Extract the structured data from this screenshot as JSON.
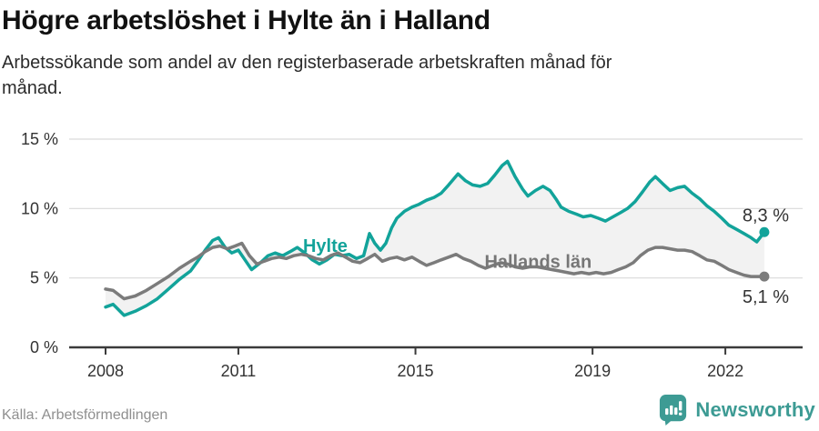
{
  "header": {
    "title": "Högre arbetslöshet i Hylte än i Halland",
    "subtitle": "Arbetssökande som andel av den registerbaserade arbetskraften månad för månad."
  },
  "footer": {
    "source": "Källa: Arbetsförmedlingen",
    "brand": "Newsworthy"
  },
  "colors": {
    "hylte": "#12a39a",
    "halland": "#7b7b7b",
    "halland_label": "#767676",
    "area_fill": "#f2f2f2",
    "grid": "#d9d9d9",
    "axis": "#3b3b3b",
    "tick_text": "#333333",
    "end_label_text": "#333333",
    "brand": "#3d9b94",
    "source_text": "#8f8f8f"
  },
  "chart_data": {
    "type": "line",
    "title": "Högre arbetslöshet i Hylte än i Halland",
    "subtitle": "Arbetssökande som andel av den registerbaserade arbetskraften månad för månad.",
    "unit": "%",
    "xlim": [
      2007.8,
      2023.2
    ],
    "ylim": [
      0,
      15
    ],
    "grid": "horizontal",
    "y_gridlines": [
      5,
      10,
      15
    ],
    "y_ticks": [
      0,
      5,
      10,
      15
    ],
    "y_tick_labels": [
      "0 %",
      "5 %",
      "10 %",
      "15 %"
    ],
    "x_ticks": [
      2008,
      2011,
      2015,
      2019,
      2022
    ],
    "x_tick_labels": [
      "2008",
      "2011",
      "2015",
      "2019",
      "2022"
    ],
    "legend": "inline-labels",
    "area_between_series": true,
    "series": [
      {
        "name": "Hylte",
        "end_label": "8,3 %",
        "end_value": 8.3,
        "end_label_side": "above",
        "label_anchor": {
          "year": 2012.46,
          "pct": 7.35
        },
        "points": [
          [
            2008.0,
            2.9
          ],
          [
            2008.17,
            3.1
          ],
          [
            2008.42,
            2.3
          ],
          [
            2008.67,
            2.6
          ],
          [
            2008.92,
            3.0
          ],
          [
            2009.17,
            3.5
          ],
          [
            2009.42,
            4.2
          ],
          [
            2009.67,
            4.9
          ],
          [
            2009.92,
            5.5
          ],
          [
            2010.08,
            6.2
          ],
          [
            2010.25,
            7.0
          ],
          [
            2010.42,
            7.7
          ],
          [
            2010.55,
            7.9
          ],
          [
            2010.7,
            7.2
          ],
          [
            2010.85,
            6.8
          ],
          [
            2011.0,
            7.0
          ],
          [
            2011.15,
            6.3
          ],
          [
            2011.3,
            5.6
          ],
          [
            2011.5,
            6.1
          ],
          [
            2011.67,
            6.6
          ],
          [
            2011.83,
            6.8
          ],
          [
            2012.0,
            6.6
          ],
          [
            2012.17,
            6.9
          ],
          [
            2012.33,
            7.2
          ],
          [
            2012.5,
            6.8
          ],
          [
            2012.67,
            6.3
          ],
          [
            2012.83,
            6.0
          ],
          [
            2013.0,
            6.3
          ],
          [
            2013.17,
            6.7
          ],
          [
            2013.33,
            6.6
          ],
          [
            2013.5,
            6.7
          ],
          [
            2013.67,
            6.4
          ],
          [
            2013.83,
            6.6
          ],
          [
            2013.96,
            8.2
          ],
          [
            2014.08,
            7.5
          ],
          [
            2014.21,
            7.0
          ],
          [
            2014.33,
            7.5
          ],
          [
            2014.46,
            8.6
          ],
          [
            2014.58,
            9.3
          ],
          [
            2014.75,
            9.8
          ],
          [
            2014.92,
            10.1
          ],
          [
            2015.08,
            10.3
          ],
          [
            2015.25,
            10.6
          ],
          [
            2015.42,
            10.8
          ],
          [
            2015.58,
            11.1
          ],
          [
            2015.75,
            11.7
          ],
          [
            2015.96,
            12.5
          ],
          [
            2016.13,
            12.0
          ],
          [
            2016.29,
            11.7
          ],
          [
            2016.46,
            11.6
          ],
          [
            2016.63,
            11.8
          ],
          [
            2016.79,
            12.4
          ],
          [
            2016.96,
            13.1
          ],
          [
            2017.08,
            13.4
          ],
          [
            2017.25,
            12.3
          ],
          [
            2017.42,
            11.4
          ],
          [
            2017.54,
            10.9
          ],
          [
            2017.71,
            11.3
          ],
          [
            2017.88,
            11.6
          ],
          [
            2018.04,
            11.3
          ],
          [
            2018.17,
            10.7
          ],
          [
            2018.29,
            10.1
          ],
          [
            2018.46,
            9.8
          ],
          [
            2018.63,
            9.6
          ],
          [
            2018.79,
            9.4
          ],
          [
            2018.96,
            9.5
          ],
          [
            2019.13,
            9.3
          ],
          [
            2019.29,
            9.1
          ],
          [
            2019.46,
            9.4
          ],
          [
            2019.63,
            9.7
          ],
          [
            2019.79,
            10.0
          ],
          [
            2019.96,
            10.5
          ],
          [
            2020.13,
            11.2
          ],
          [
            2020.29,
            11.9
          ],
          [
            2020.42,
            12.3
          ],
          [
            2020.58,
            11.8
          ],
          [
            2020.75,
            11.3
          ],
          [
            2020.92,
            11.5
          ],
          [
            2021.08,
            11.6
          ],
          [
            2021.25,
            11.1
          ],
          [
            2021.42,
            10.7
          ],
          [
            2021.58,
            10.2
          ],
          [
            2021.75,
            9.8
          ],
          [
            2021.92,
            9.3
          ],
          [
            2022.08,
            8.8
          ],
          [
            2022.25,
            8.5
          ],
          [
            2022.42,
            8.2
          ],
          [
            2022.58,
            7.9
          ],
          [
            2022.71,
            7.6
          ],
          [
            2022.88,
            8.3
          ]
        ]
      },
      {
        "name": "Hallands län",
        "end_label": "5,1 %",
        "end_value": 5.1,
        "end_label_side": "below",
        "label_anchor": {
          "year": 2016.56,
          "pct": 6.2
        },
        "points": [
          [
            2008.0,
            4.2
          ],
          [
            2008.17,
            4.1
          ],
          [
            2008.42,
            3.5
          ],
          [
            2008.67,
            3.7
          ],
          [
            2008.92,
            4.1
          ],
          [
            2009.17,
            4.6
          ],
          [
            2009.42,
            5.1
          ],
          [
            2009.67,
            5.7
          ],
          [
            2009.92,
            6.2
          ],
          [
            2010.08,
            6.5
          ],
          [
            2010.25,
            6.9
          ],
          [
            2010.42,
            7.2
          ],
          [
            2010.58,
            7.3
          ],
          [
            2010.75,
            7.1
          ],
          [
            2010.92,
            7.3
          ],
          [
            2011.08,
            7.5
          ],
          [
            2011.25,
            6.6
          ],
          [
            2011.42,
            6.0
          ],
          [
            2011.58,
            6.2
          ],
          [
            2011.75,
            6.4
          ],
          [
            2011.92,
            6.5
          ],
          [
            2012.08,
            6.4
          ],
          [
            2012.25,
            6.6
          ],
          [
            2012.42,
            6.7
          ],
          [
            2012.58,
            6.6
          ],
          [
            2012.75,
            6.4
          ],
          [
            2012.92,
            6.3
          ],
          [
            2013.08,
            6.6
          ],
          [
            2013.25,
            6.8
          ],
          [
            2013.42,
            6.5
          ],
          [
            2013.58,
            6.2
          ],
          [
            2013.75,
            6.1
          ],
          [
            2013.92,
            6.4
          ],
          [
            2014.08,
            6.7
          ],
          [
            2014.25,
            6.2
          ],
          [
            2014.42,
            6.4
          ],
          [
            2014.58,
            6.5
          ],
          [
            2014.75,
            6.3
          ],
          [
            2014.92,
            6.5
          ],
          [
            2015.08,
            6.2
          ],
          [
            2015.25,
            5.9
          ],
          [
            2015.42,
            6.1
          ],
          [
            2015.58,
            6.3
          ],
          [
            2015.75,
            6.5
          ],
          [
            2015.92,
            6.7
          ],
          [
            2016.08,
            6.4
          ],
          [
            2016.25,
            6.2
          ],
          [
            2016.42,
            5.9
          ],
          [
            2016.58,
            5.7
          ],
          [
            2016.75,
            5.9
          ],
          [
            2016.92,
            6.1
          ],
          [
            2017.08,
            6.0
          ],
          [
            2017.25,
            5.8
          ],
          [
            2017.42,
            5.7
          ],
          [
            2017.58,
            5.8
          ],
          [
            2017.75,
            5.8
          ],
          [
            2017.92,
            5.7
          ],
          [
            2018.08,
            5.6
          ],
          [
            2018.25,
            5.5
          ],
          [
            2018.42,
            5.4
          ],
          [
            2018.58,
            5.3
          ],
          [
            2018.75,
            5.4
          ],
          [
            2018.92,
            5.3
          ],
          [
            2019.08,
            5.4
          ],
          [
            2019.25,
            5.3
          ],
          [
            2019.42,
            5.4
          ],
          [
            2019.58,
            5.6
          ],
          [
            2019.75,
            5.8
          ],
          [
            2019.92,
            6.1
          ],
          [
            2020.08,
            6.6
          ],
          [
            2020.25,
            7.0
          ],
          [
            2020.42,
            7.2
          ],
          [
            2020.58,
            7.2
          ],
          [
            2020.75,
            7.1
          ],
          [
            2020.92,
            7.0
          ],
          [
            2021.08,
            7.0
          ],
          [
            2021.25,
            6.9
          ],
          [
            2021.42,
            6.6
          ],
          [
            2021.58,
            6.3
          ],
          [
            2021.75,
            6.2
          ],
          [
            2021.92,
            5.9
          ],
          [
            2022.08,
            5.6
          ],
          [
            2022.25,
            5.4
          ],
          [
            2022.42,
            5.2
          ],
          [
            2022.58,
            5.1
          ],
          [
            2022.88,
            5.1
          ]
        ]
      }
    ]
  }
}
